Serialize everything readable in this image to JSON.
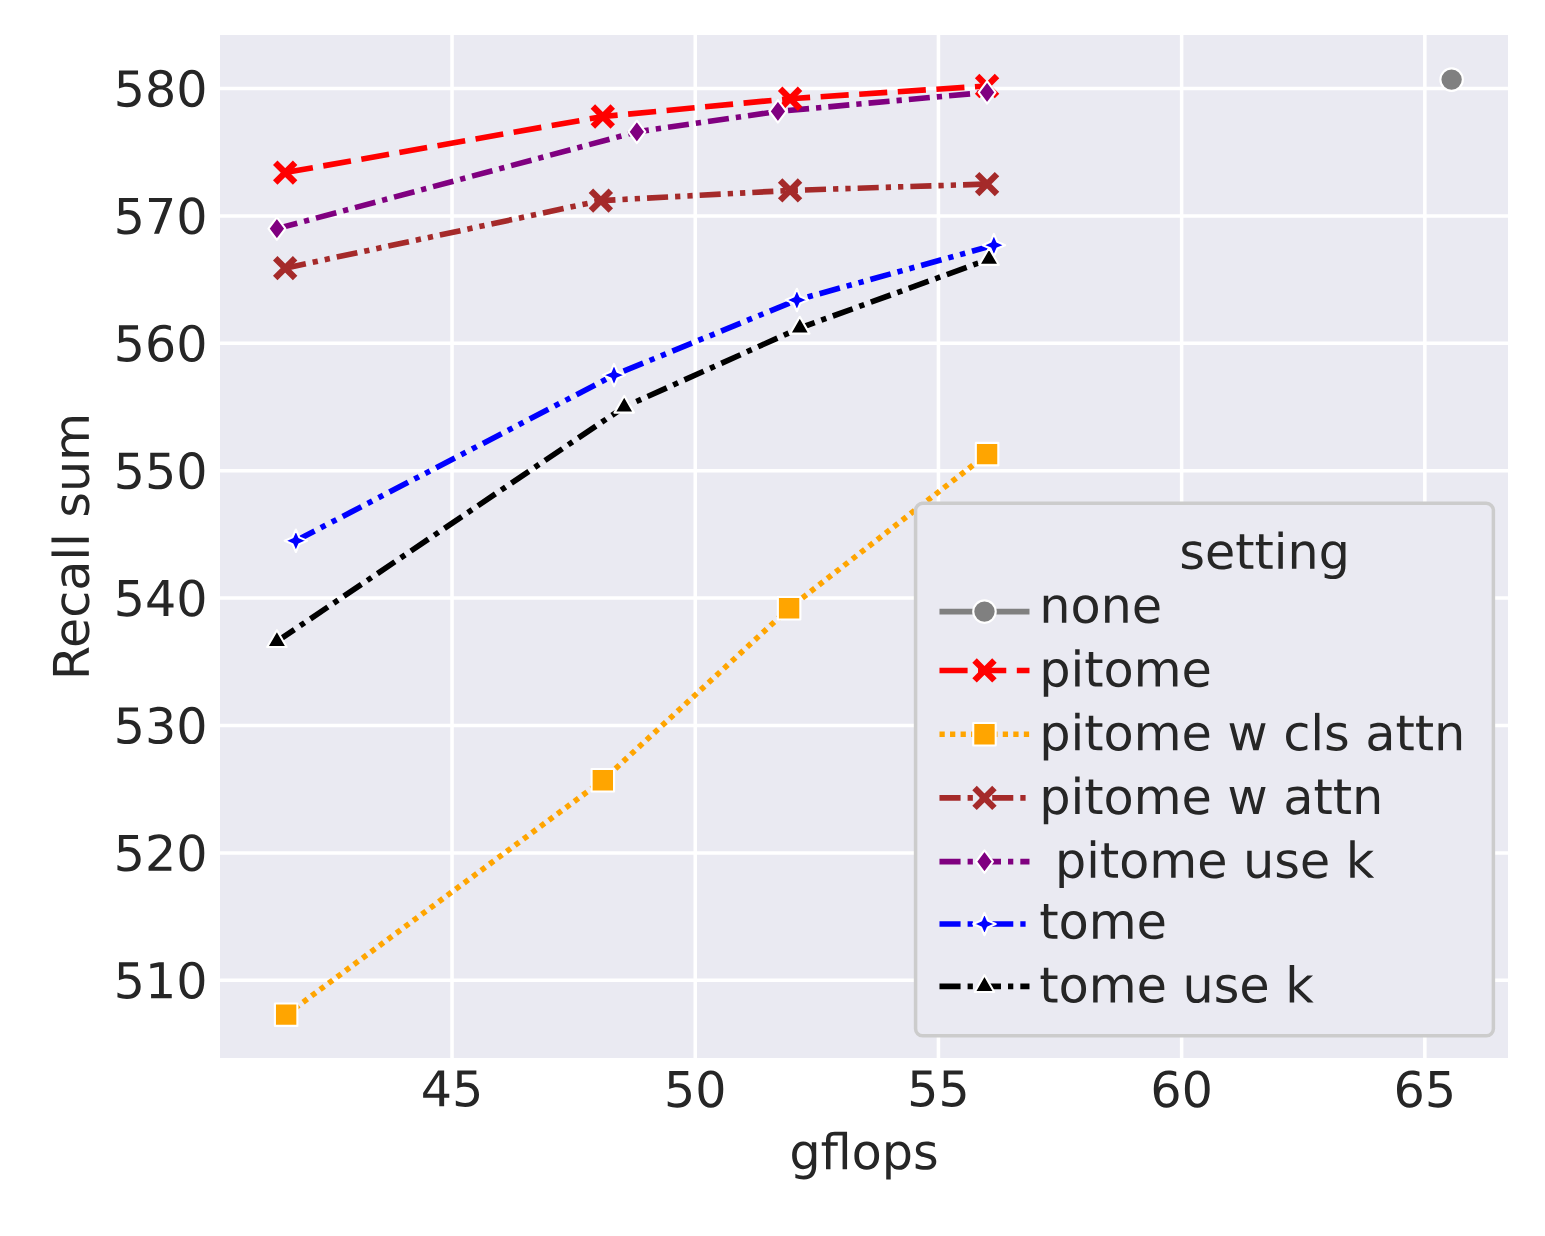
{
  "chart_data": {
    "type": "line",
    "xlabel": "gflops",
    "ylabel": "Recall sum",
    "legend_title": "setting",
    "xlim": [
      40.23,
      66.71
    ],
    "ylim": [
      503.9,
      584.2
    ],
    "xticks": [
      45,
      50,
      55,
      60,
      65
    ],
    "yticks": [
      510,
      520,
      530,
      540,
      550,
      560,
      570,
      580
    ],
    "grid": true,
    "legend": "bottom right",
    "series": [
      {
        "name": "none",
        "color": "#808080",
        "marker": "circle",
        "line_style": "solid",
        "x": [
          65.55
        ],
        "values": [
          580.7
        ]
      },
      {
        "name": "pitome",
        "color": "#ff0000",
        "marker": "cross",
        "line_style": "dashed",
        "x": [
          41.57,
          48.1,
          51.95,
          56.0
        ],
        "values": [
          573.4,
          577.8,
          579.2,
          580.2
        ]
      },
      {
        "name": "pitome w cls attn",
        "color": "#ffa500",
        "marker": "square",
        "line_style": "dotted",
        "x": [
          41.59,
          48.1,
          51.93,
          56.0
        ],
        "values": [
          507.3,
          525.7,
          539.2,
          551.3
        ]
      },
      {
        "name": "pitome w attn",
        "color": "#a52a2a",
        "marker": "cross",
        "line_style": "dashdotdot",
        "x": [
          41.57,
          48.06,
          51.95,
          56.0
        ],
        "values": [
          565.9,
          571.2,
          572.0,
          572.5
        ]
      },
      {
        "name": " pitome use k",
        "color": "#800080",
        "marker": "diamond",
        "line_style": "dashdot",
        "x": [
          41.4,
          48.8,
          51.7,
          56.0
        ],
        "values": [
          569.0,
          576.6,
          578.2,
          579.7
        ]
      },
      {
        "name": "tome",
        "color": "#0000ff",
        "marker": "star",
        "line_style": "dashdotdot",
        "x": [
          41.79,
          48.33,
          52.09,
          56.14
        ],
        "values": [
          544.5,
          557.5,
          563.4,
          567.7
        ]
      },
      {
        "name": "tome use k",
        "color": "#000000",
        "marker": "triangle",
        "line_style": "dashdot",
        "x": [
          41.4,
          48.54,
          52.15,
          56.04
        ],
        "values": [
          536.6,
          555.0,
          561.2,
          566.6
        ]
      }
    ]
  }
}
